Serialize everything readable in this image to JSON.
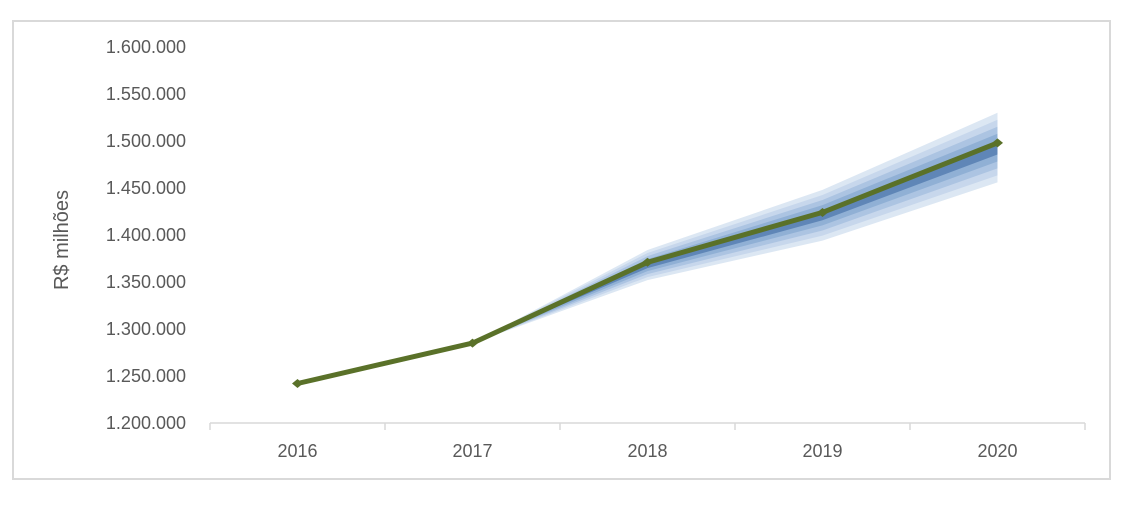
{
  "chart_data": {
    "type": "line",
    "title": "",
    "ylabel": "R$ milhões",
    "xlabel": "",
    "categories": [
      "2016",
      "2017",
      "2018",
      "2019",
      "2020"
    ],
    "y_axis": {
      "min": 1200000,
      "max": 1600000,
      "tick_step": 50000,
      "tick_labels": [
        "1.600.000",
        "1.550.000",
        "1.500.000",
        "1.450.000",
        "1.400.000",
        "1.350.000",
        "1.300.000",
        "1.250.000",
        "1.200.000"
      ]
    },
    "grid": "off",
    "legend": "none",
    "series": [
      {
        "name": "central_line",
        "color": "#5a7129",
        "marker": "diamond",
        "values": [
          1242000,
          1285000,
          1371000,
          1424000,
          1498000
        ]
      }
    ],
    "fan": {
      "description": "forecast-confidence-bands",
      "x_indices": [
        1,
        2,
        3,
        4
      ],
      "center_values": [
        1285000,
        1368000,
        1421000,
        1493000
      ],
      "outer_half_widths": [
        0,
        16000,
        27000,
        37000
      ],
      "band_edge_fractions": [
        1,
        0.8,
        0.6,
        0.4,
        0.2
      ],
      "band_colors_outer_to_inner": [
        "#dce7f3",
        "#c7d7ec",
        "#acc4e2",
        "#90b0d5",
        "#5f86b7"
      ]
    }
  },
  "colors": {
    "axis": "#d9d9d9",
    "frame": "#d9d9d9",
    "text": "#595959",
    "background": "#ffffff"
  }
}
